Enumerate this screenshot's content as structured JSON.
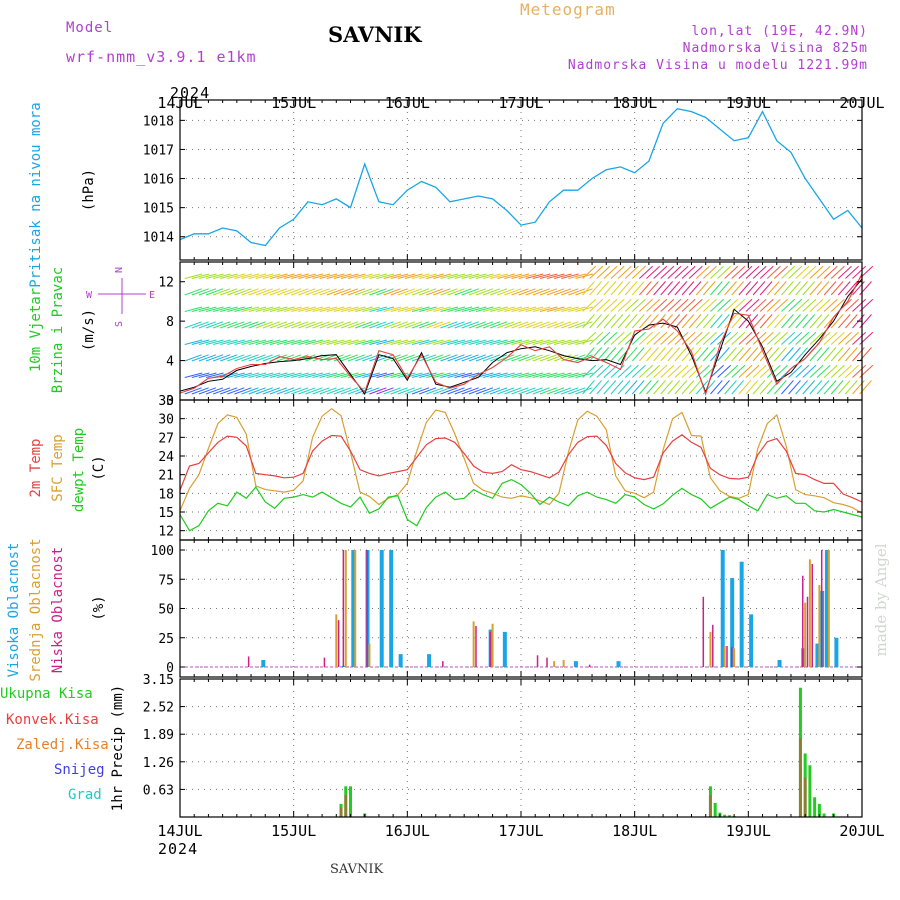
{
  "header": {
    "model_label": "Model",
    "model_name": "wrf-nmm_v3.9.1 e1km",
    "station": "SAVNIK",
    "meteogram": "Meteogram",
    "lonlat": "lon,lat (19E, 42.9N)",
    "altitude": "Nadmorska Visina 825m",
    "model_altitude": "Nadmorska Visina u modelu 1221.99m",
    "year": "2024",
    "footer_station": "SAVNIK",
    "watermark": "made by Angel"
  },
  "colors": {
    "pressure": "#19a6e6",
    "wind_label": "#1fcc1f",
    "temp2m": "#e84040",
    "sfc": "#d9a030",
    "dewpoint": "#1fcc1f",
    "cloud_high": "#19a6e6",
    "cloud_mid": "#d9a030",
    "cloud_low": "#cc1f8c",
    "precip_total": "#1fcc1f",
    "precip_conv": "#e84040",
    "precip_frontal": "#e8802a",
    "snow": "#4040e0",
    "hail": "#1fc8c8",
    "purple": "#b040d0"
  },
  "chart_data": [
    {
      "type": "line",
      "name": "pressure",
      "ylabel": "Pritisak na nivou mora",
      "unit": "(hPa)",
      "x_ticks": [
        "14JUL",
        "15JUL",
        "16JUL",
        "17JUL",
        "18JUL",
        "19JUL",
        "20JUL"
      ],
      "ylim": [
        1013.2,
        1018.7
      ],
      "yticks": [
        1014,
        1015,
        1016,
        1017,
        1018
      ],
      "grid": true,
      "series": [
        {
          "name": "",
          "x_hours": [
            0,
            3,
            6,
            9,
            12,
            15,
            18,
            21,
            24,
            27,
            30,
            33,
            36,
            39,
            42,
            45,
            48,
            51,
            54,
            57,
            60,
            63,
            66,
            69,
            72,
            75,
            78,
            81,
            84,
            87,
            90,
            93,
            96,
            99,
            102,
            105,
            108,
            111,
            114,
            117,
            120,
            123,
            126,
            129,
            132,
            135,
            138,
            141,
            144
          ],
          "values": [
            1013.9,
            1014.1,
            1014.1,
            1014.3,
            1014.2,
            1013.8,
            1013.7,
            1014.3,
            1014.6,
            1015.2,
            1015.1,
            1015.3,
            1015.0,
            1016.5,
            1015.2,
            1015.1,
            1015.6,
            1015.9,
            1015.7,
            1015.2,
            1015.3,
            1015.4,
            1015.3,
            1014.9,
            1014.4,
            1014.5,
            1015.2,
            1015.6,
            1015.6,
            1016.0,
            1016.3,
            1016.4,
            1016.2,
            1016.6,
            1017.9,
            1018.4,
            1018.3,
            1018.1,
            1017.7,
            1017.3,
            1017.4,
            1018.3,
            1017.3,
            1016.9,
            1016.0,
            1015.3,
            1014.6,
            1014.9,
            1014.3
          ]
        }
      ]
    },
    {
      "type": "line",
      "name": "wind",
      "ylabel": [
        "10m Vjetar",
        "Brzina i Pravac"
      ],
      "unit": "(m/s)",
      "compass": {
        "n": "N",
        "e": "E",
        "w": "W",
        "s": "S"
      },
      "ylim": [
        0,
        14
      ],
      "yticks": [
        0,
        4,
        8,
        12
      ],
      "series": [
        {
          "name": "",
          "x_hours": [
            0,
            3,
            6,
            9,
            12,
            15,
            18,
            21,
            24,
            27,
            30,
            33,
            36,
            39,
            42,
            45,
            48,
            51,
            54,
            57,
            60,
            63,
            66,
            69,
            72,
            75,
            78,
            81,
            84,
            87,
            90,
            93,
            96,
            99,
            102,
            105,
            108,
            111,
            114,
            117,
            120,
            123,
            126,
            129,
            132,
            135,
            138,
            141,
            144
          ],
          "values": [
            0.9,
            1.3,
            1.9,
            2.1,
            3.0,
            3.4,
            3.7,
            3.9,
            4.0,
            4.2,
            4.5,
            4.6,
            2.6,
            0.6,
            4.6,
            4.2,
            2.0,
            4.8,
            1.6,
            1.3,
            1.8,
            2.3,
            3.8,
            4.8,
            5.2,
            5.4,
            5.0,
            4.5,
            4.2,
            4.0,
            4.1,
            3.6,
            6.6,
            7.6,
            7.8,
            7.4,
            4.5,
            0.8,
            5.0,
            9.2,
            8.0,
            5.4,
            1.9,
            2.8,
            4.6,
            6.2,
            8.0,
            10.5,
            12.3
          ]
        },
        {
          "name": "",
          "x_hours": [
            0,
            3,
            6,
            9,
            12,
            15,
            18,
            21,
            24,
            27,
            30,
            33,
            36,
            39,
            42,
            45,
            48,
            51,
            54,
            57,
            60,
            63,
            66,
            69,
            72,
            75,
            78,
            81,
            84,
            87,
            90,
            93,
            96,
            99,
            102,
            105,
            108,
            111,
            114,
            117,
            120,
            123,
            126,
            129,
            132,
            135,
            138,
            141,
            144
          ],
          "values": [
            0.7,
            1.2,
            2.2,
            2.4,
            3.2,
            3.6,
            3.6,
            4.4,
            4.1,
            4.4,
            4.1,
            4.2,
            2.4,
            0.8,
            5.0,
            4.6,
            2.2,
            4.6,
            1.8,
            1.2,
            1.6,
            2.6,
            3.3,
            4.3,
            5.6,
            5.0,
            5.4,
            4.1,
            3.8,
            4.4,
            3.8,
            3.1,
            7.0,
            7.2,
            8.2,
            7.0,
            4.9,
            0.6,
            5.6,
            8.8,
            8.6,
            5.0,
            1.6,
            3.2,
            4.2,
            5.8,
            8.4,
            10.0,
            12.8
          ]
        }
      ]
    },
    {
      "type": "line",
      "name": "temperature",
      "ylabel": [
        "2m Temp",
        "SFC Temp",
        "dewpt Temp"
      ],
      "unit": "(C)",
      "ylim": [
        10.5,
        33
      ],
      "yticks": [
        12,
        15,
        18,
        21,
        24,
        27,
        30,
        33
      ],
      "grid": true,
      "series": [
        {
          "name": "2m Temp",
          "x_hours": [
            0,
            2,
            4,
            6,
            8,
            10,
            12,
            14,
            16,
            18,
            20,
            22,
            24,
            26,
            28,
            30,
            32,
            34,
            36,
            38,
            40,
            42,
            44,
            46,
            48,
            50,
            52,
            54,
            56,
            58,
            60,
            62,
            64,
            66,
            68,
            70,
            72,
            74,
            76,
            78,
            80,
            82,
            84,
            86,
            88,
            90,
            92,
            94,
            96,
            98,
            100,
            102,
            104,
            106,
            108,
            110,
            112,
            114,
            116,
            118,
            120,
            122,
            124,
            126,
            128,
            130,
            132,
            134,
            136,
            138,
            140,
            142,
            144
          ],
          "values": [
            18.5,
            22.4,
            22.8,
            24.5,
            26.2,
            27.2,
            27.0,
            25.6,
            21.2,
            21.0,
            20.8,
            20.5,
            20.6,
            21.2,
            24.8,
            26.4,
            27.3,
            27.2,
            24.8,
            21.8,
            21.2,
            20.8,
            21.2,
            21.5,
            21.8,
            23.8,
            25.8,
            26.8,
            26.9,
            26.2,
            24.4,
            22.4,
            21.4,
            21.2,
            21.5,
            22.6,
            21.8,
            21.5,
            21.0,
            20.5,
            21.4,
            24.2,
            26.2,
            27.1,
            27.2,
            25.7,
            22.8,
            21.3,
            20.5,
            20.2,
            20.6,
            24.5,
            26.4,
            27.4,
            26.2,
            25.4,
            22.0,
            21.0,
            20.4,
            20.3,
            20.6,
            24.2,
            26.3,
            26.8,
            24.8,
            21.2,
            21.0,
            20.2,
            19.6,
            19.6,
            17.9,
            17.3,
            16.6
          ]
        },
        {
          "name": "SFC Temp",
          "x_hours": [
            0,
            2,
            4,
            6,
            8,
            10,
            12,
            14,
            16,
            18,
            20,
            22,
            24,
            26,
            28,
            30,
            32,
            34,
            36,
            38,
            40,
            42,
            44,
            46,
            48,
            50,
            52,
            54,
            56,
            58,
            60,
            62,
            64,
            66,
            68,
            70,
            72,
            74,
            76,
            78,
            80,
            82,
            84,
            86,
            88,
            90,
            92,
            94,
            96,
            98,
            100,
            102,
            104,
            106,
            108,
            110,
            112,
            114,
            116,
            118,
            120,
            122,
            124,
            126,
            128,
            130,
            132,
            134,
            136,
            138,
            140,
            142,
            144
          ],
          "values": [
            15.2,
            18.8,
            21.0,
            25.2,
            29.2,
            30.6,
            30.2,
            27.5,
            19.2,
            18.6,
            18.4,
            18.2,
            18.5,
            20.0,
            27.0,
            30.4,
            31.6,
            30.5,
            24.6,
            18.2,
            17.5,
            16.2,
            17.2,
            17.8,
            19.6,
            24.8,
            29.4,
            31.4,
            31.0,
            27.6,
            23.6,
            19.6,
            18.5,
            18.0,
            17.4,
            17.2,
            17.6,
            17.3,
            16.8,
            16.2,
            18.0,
            24.6,
            29.8,
            31.2,
            30.4,
            28.2,
            20.8,
            18.4,
            18.0,
            17.3,
            18.2,
            25.0,
            30.0,
            31.0,
            27.3,
            27.2,
            20.5,
            18.4,
            17.5,
            17.2,
            17.8,
            25.2,
            29.2,
            30.6,
            25.6,
            18.6,
            17.8,
            17.6,
            17.3,
            16.5,
            16.2,
            15.7,
            14.8
          ]
        },
        {
          "name": "dewpt Temp",
          "x_hours": [
            0,
            2,
            4,
            6,
            8,
            10,
            12,
            14,
            16,
            18,
            20,
            22,
            24,
            26,
            28,
            30,
            32,
            34,
            36,
            38,
            40,
            42,
            44,
            46,
            48,
            50,
            52,
            54,
            56,
            58,
            60,
            62,
            64,
            66,
            68,
            70,
            72,
            74,
            76,
            78,
            80,
            82,
            84,
            86,
            88,
            90,
            92,
            94,
            96,
            98,
            100,
            102,
            104,
            106,
            108,
            110,
            112,
            114,
            116,
            118,
            120,
            122,
            124,
            126,
            128,
            130,
            132,
            134,
            136,
            138,
            140,
            142,
            144
          ],
          "values": [
            14.6,
            12.0,
            12.8,
            15.2,
            16.4,
            16.0,
            18.2,
            17.2,
            19.0,
            16.6,
            15.6,
            17.2,
            17.4,
            17.8,
            17.4,
            18.2,
            17.3,
            16.4,
            15.8,
            17.4,
            14.8,
            15.5,
            17.4,
            17.6,
            13.8,
            12.8,
            15.7,
            17.4,
            18.2,
            17.0,
            17.2,
            18.6,
            17.8,
            17.2,
            19.6,
            20.2,
            19.4,
            18.0,
            16.2,
            17.4,
            16.6,
            16.0,
            17.6,
            18.2,
            17.4,
            17.0,
            16.4,
            17.8,
            17.4,
            16.2,
            15.5,
            16.3,
            17.7,
            18.8,
            17.8,
            17.1,
            15.6,
            16.5,
            17.4,
            17.0,
            16.0,
            15.2,
            17.8,
            17.2,
            17.6,
            16.4,
            16.4,
            15.2,
            15.0,
            15.4,
            15.0,
            14.6,
            14.2
          ]
        }
      ]
    },
    {
      "type": "bar",
      "name": "clouds",
      "ylabel": [
        "Visoka Oblacnost",
        "Srednja Oblacnost",
        "Niska Oblacnost"
      ],
      "unit": "(%)",
      "ylim": [
        0,
        100
      ],
      "yticks": [
        0,
        25,
        50,
        75,
        100
      ],
      "grid": true,
      "series": [
        {
          "name": "Visoka Oblacnost",
          "x_hours": [
            17,
            34,
            36,
            39,
            42,
            44,
            46,
            52,
            65,
            68,
            83,
            92,
            114,
            116,
            118,
            120,
            126,
            131,
            134,
            135,
            136,
            138
          ],
          "values": [
            6,
            1,
            100,
            100,
            100,
            100,
            11,
            11,
            32,
            30,
            5,
            5,
            100,
            76,
            90,
            45,
            6,
            16,
            20,
            65,
            100,
            25
          ]
        },
        {
          "name": "Srednja Oblacnost",
          "x_hours": [
            33,
            35,
            37,
            40,
            62,
            66,
            79,
            81,
            112,
            115,
            117,
            132,
            133,
            135,
            137
          ],
          "values": [
            45,
            100,
            100,
            20,
            39,
            37,
            5,
            6,
            30,
            18,
            16,
            55,
            92,
            70,
            100
          ]
        },
        {
          "name": "Niska Oblacnost",
          "x_hours": [
            15,
            31,
            34,
            35,
            40,
            56,
            63,
            66,
            76,
            78,
            87,
            111,
            113,
            116,
            117,
            132,
            133,
            134,
            136
          ],
          "values": [
            9,
            8,
            40,
            100,
            100,
            5,
            35,
            30,
            10,
            8,
            2,
            60,
            36,
            18,
            17,
            78,
            60,
            88,
            100
          ]
        }
      ]
    },
    {
      "type": "bar",
      "name": "precipitation",
      "ylabel": "1hr Precip",
      "unit": "(mm)",
      "legend": [
        "Ukupna Kisa",
        "Konvek.Kisa",
        "Zaledj.Kisa",
        "Snijeg",
        "Grad"
      ],
      "ylim": [
        0,
        3.15
      ],
      "yticks": [
        0.63,
        1.26,
        1.89,
        2.52,
        3.15
      ],
      "series": [
        {
          "name": "Ukupna Kisa",
          "x_hours": [
            34,
            35,
            36,
            39,
            112,
            113,
            114,
            115,
            116,
            117,
            131,
            132,
            133,
            134,
            135,
            136,
            138
          ],
          "values": [
            0.3,
            0.7,
            0.7,
            0.08,
            0.7,
            0.32,
            0.1,
            0.05,
            0.04,
            0.02,
            2.95,
            1.45,
            1.18,
            0.45,
            0.3,
            0.08,
            0.08
          ]
        },
        {
          "name": "Konvek.Kisa",
          "x_hours": [
            34,
            35,
            112,
            131,
            132
          ],
          "values": [
            0.22,
            0.5,
            0.5,
            1.8,
            0.9
          ]
        }
      ]
    }
  ],
  "x_axis": {
    "ticks": [
      "14JUL",
      "15JUL",
      "16JUL",
      "17JUL",
      "18JUL",
      "19JUL",
      "20JUL"
    ],
    "range_hours": [
      0,
      144
    ]
  }
}
